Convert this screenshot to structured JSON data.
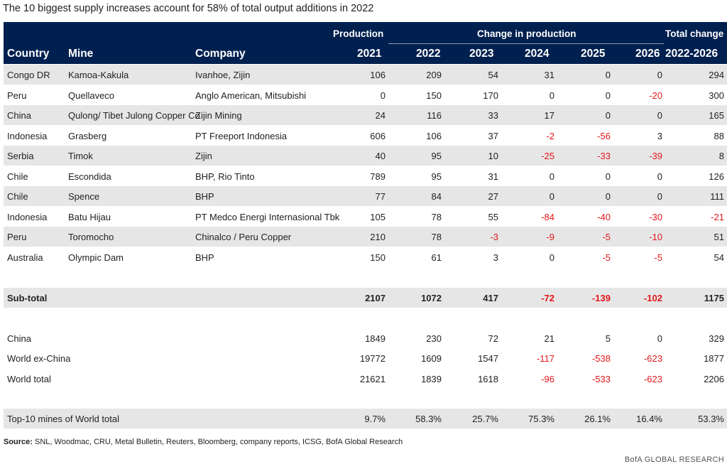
{
  "title": "The 10 biggest supply increases account for 58% of total output additions in 2022",
  "header": {
    "group_production": "Production",
    "group_change": "Change in production",
    "group_total": "Total change",
    "col_country": "Country",
    "col_mine": "Mine",
    "col_company": "Company",
    "col_2021": "2021",
    "col_2022": "2022",
    "col_2023": "2023",
    "col_2024": "2024",
    "col_2025": "2025",
    "col_2026": "2026",
    "col_total": "2022-2026"
  },
  "mines": [
    {
      "country": "Congo DR",
      "mine": "Kamoa-Kakula",
      "company": "Ivanhoe, Zijin",
      "v": [
        "106",
        "209",
        "54",
        "31",
        "0",
        "0",
        "294"
      ]
    },
    {
      "country": "Peru",
      "mine": "Quellaveco",
      "company": "Anglo American, Mitsubishi",
      "v": [
        "0",
        "150",
        "170",
        "0",
        "0",
        "-20",
        "300"
      ]
    },
    {
      "country": "China",
      "mine": "Qulong/ Tibet Julong Copper Co",
      "company": "Zijin Mining",
      "v": [
        "24",
        "116",
        "33",
        "17",
        "0",
        "0",
        "165"
      ]
    },
    {
      "country": "Indonesia",
      "mine": "Grasberg",
      "company": "PT Freeport Indonesia",
      "v": [
        "606",
        "106",
        "37",
        "-2",
        "-56",
        "3",
        "88"
      ]
    },
    {
      "country": "Serbia",
      "mine": "Timok",
      "company": "Zijin",
      "v": [
        "40",
        "95",
        "10",
        "-25",
        "-33",
        "-39",
        "8"
      ]
    },
    {
      "country": "Chile",
      "mine": "Escondida",
      "company": "BHP, Rio Tinto",
      "v": [
        "789",
        "95",
        "31",
        "0",
        "0",
        "0",
        "126"
      ]
    },
    {
      "country": "Chile",
      "mine": "Spence",
      "company": "BHP",
      "v": [
        "77",
        "84",
        "27",
        "0",
        "0",
        "0",
        "111"
      ]
    },
    {
      "country": "Indonesia",
      "mine": "Batu Hijau",
      "company": "PT Medco Energi Internasional Tbk",
      "v": [
        "105",
        "78",
        "55",
        "-84",
        "-40",
        "-30",
        "-21"
      ]
    },
    {
      "country": "Peru",
      "mine": "Toromocho",
      "company": "Chinalco / Peru Copper",
      "v": [
        "210",
        "78",
        "-3",
        "-9",
        "-5",
        "-10",
        "51"
      ]
    },
    {
      "country": "Australia",
      "mine": "Olympic Dam",
      "company": "BHP",
      "v": [
        "150",
        "61",
        "3",
        "0",
        "-5",
        "-5",
        "54"
      ]
    }
  ],
  "subtotal": {
    "label": "Sub-total",
    "v": [
      "2107",
      "1072",
      "417",
      "-72",
      "-139",
      "-102",
      "1175"
    ]
  },
  "totals": [
    {
      "label": "China",
      "v": [
        "1849",
        "230",
        "72",
        "21",
        "5",
        "0",
        "329"
      ]
    },
    {
      "label": "World ex-China",
      "v": [
        "19772",
        "1609",
        "1547",
        "-117",
        "-538",
        "-623",
        "1877"
      ]
    },
    {
      "label": "World total",
      "v": [
        "21621",
        "1839",
        "1618",
        "-96",
        "-533",
        "-623",
        "2206"
      ]
    }
  ],
  "share": {
    "label": "Top-10 mines of World total",
    "v": [
      "9.7%",
      "58.3%",
      "25.7%",
      "75.3%",
      "26.1%",
      "16.4%",
      "53.3%"
    ]
  },
  "source_label": "Source:",
  "source_text": " SNL, Woodmac, CRU, Metal Bulletin, Reuters, Bloomberg, company reports, ICSG, BofA Global Research",
  "brand": "BofA GLOBAL RESEARCH",
  "colors": {
    "header_bg": "#00204f",
    "negative": "#e3171b",
    "shade": "#e6e6e6"
  }
}
